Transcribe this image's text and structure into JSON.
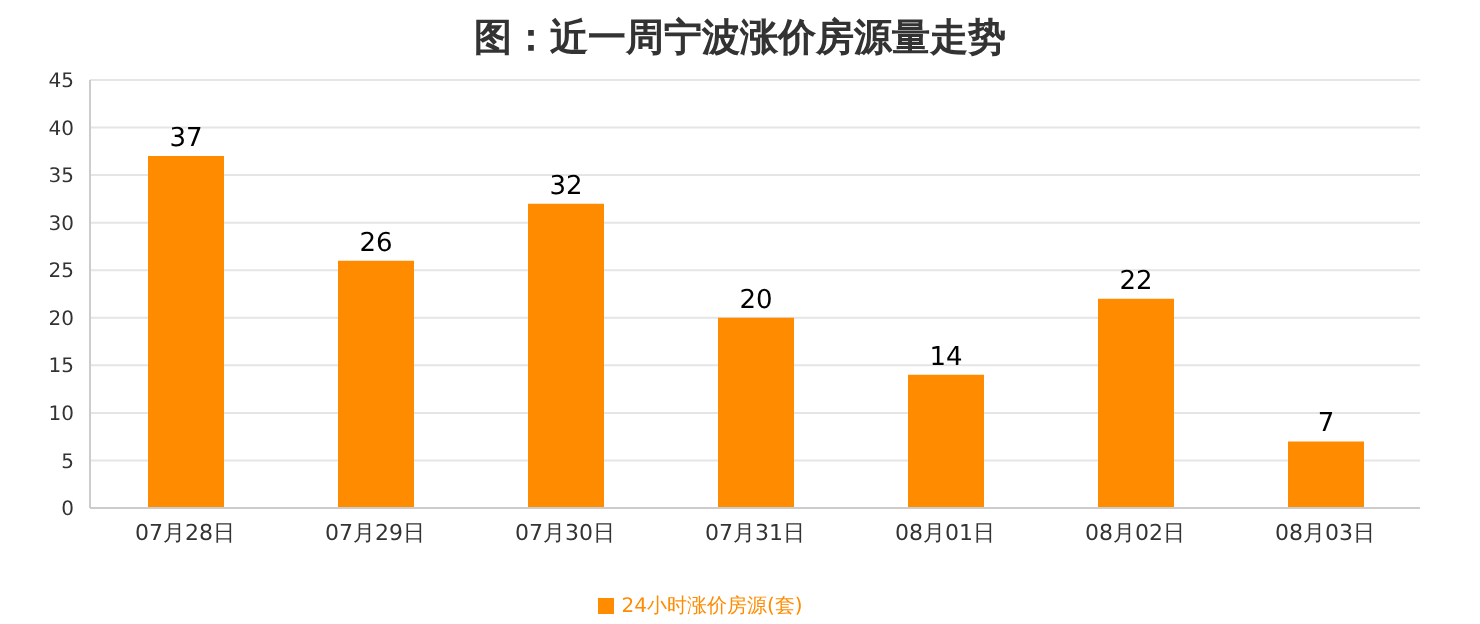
{
  "chart_data": {
    "type": "bar",
    "title": "图：近一周宁波涨价房源量走势",
    "categories": [
      "07月28日",
      "07月29日",
      "07月30日",
      "07月31日",
      "08月01日",
      "08月02日",
      "08月03日"
    ],
    "series": [
      {
        "name": "24小时涨价房源(套)",
        "color": "#ff8c00",
        "values": [
          37,
          26,
          32,
          20,
          14,
          22,
          7
        ]
      }
    ],
    "ylim": [
      0,
      45
    ],
    "yticks": [
      0,
      5,
      10,
      15,
      20,
      25,
      30,
      35,
      40,
      45
    ],
    "grid": "y",
    "legend": "bottom",
    "data_labels": true
  }
}
